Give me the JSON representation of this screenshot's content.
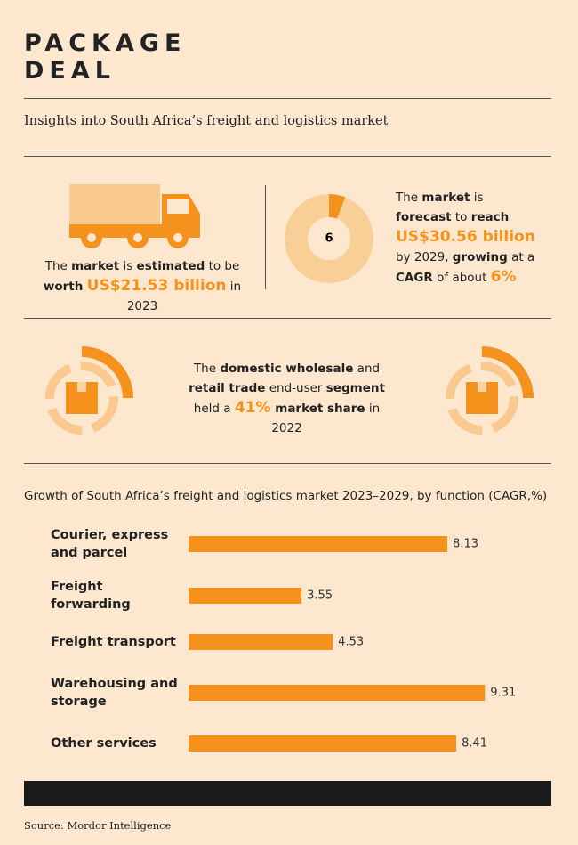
{
  "header": {
    "title_lines": [
      "PACKAGE",
      "DEAL"
    ],
    "subtitle": "Insights into South Africa’s freight and logistics market"
  },
  "stats": [
    {
      "segments": [
        {
          "text": "The ",
          "style": "normal"
        },
        {
          "text": "market",
          "style": "bold"
        },
        {
          "text": " is ",
          "style": "normal"
        },
        {
          "text": "estimated",
          "style": "bold"
        },
        {
          "text": " to be ",
          "style": "normal"
        },
        {
          "text": "worth",
          "style": "bold"
        },
        {
          "text": " ",
          "style": "normal"
        },
        {
          "text": "US$21.53 billion",
          "style": "highlight"
        },
        {
          "text": " in 2023",
          "style": "normal"
        }
      ]
    },
    {
      "segments": [
        {
          "text": "The ",
          "style": "normal"
        },
        {
          "text": "market",
          "style": "bold"
        },
        {
          "text": " is ",
          "style": "normal"
        },
        {
          "text": "forecast",
          "style": "bold"
        },
        {
          "text": " to ",
          "style": "normal"
        },
        {
          "text": "reach",
          "style": "bold"
        },
        {
          "text": " ",
          "style": "normal"
        },
        {
          "text": "US$30.56 billion",
          "style": "highlight"
        },
        {
          "text": " by 2029, ",
          "style": "normal"
        },
        {
          "text": "growing",
          "style": "bold"
        },
        {
          "text": " at a ",
          "style": "normal"
        },
        {
          "text": "CAGR",
          "style": "bold"
        },
        {
          "text": " of about ",
          "style": "normal"
        },
        {
          "text": "6%",
          "style": "highlight"
        }
      ]
    },
    {
      "segments": [
        {
          "text": "The ",
          "style": "normal"
        },
        {
          "text": "domestic wholesale",
          "style": "bold"
        },
        {
          "text": " and ",
          "style": "normal"
        },
        {
          "text": "retail trade",
          "style": "bold"
        },
        {
          "text": " end-user ",
          "style": "normal"
        },
        {
          "text": "segment",
          "style": "bold"
        },
        {
          "text": " held a ",
          "style": "normal"
        },
        {
          "text": "41%",
          "style": "highlight"
        },
        {
          "text": " market share",
          "style": "bold"
        },
        {
          "text": " in 2022",
          "style": "normal"
        }
      ]
    }
  ],
  "donut": {
    "value": 6,
    "color": "#f5921e",
    "track_color": "#f9cf98"
  },
  "chart_data": {
    "type": "bar",
    "orientation": "horizontal",
    "title": "Growth of South Africa’s freight and logistics market 2023–2029, by function (CAGR,%)",
    "categories": [
      "Courier, express and parcel",
      "Freight forwarding",
      "Freight transport",
      "Warehousing and storage",
      "Other services"
    ],
    "values": [
      8.13,
      3.55,
      4.53,
      9.31,
      8.41
    ],
    "color": "#f5921e",
    "xlim": [
      0,
      10
    ]
  },
  "source": "Source: Mordor Intelligence"
}
